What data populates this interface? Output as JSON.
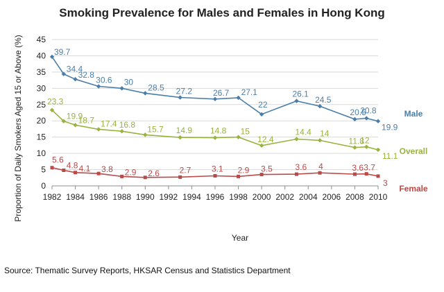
{
  "chart_data": {
    "type": "line",
    "title": "Smoking Prevalence for Males and Females in Hong Kong",
    "xlabel": "Year",
    "ylabel": "Proportion of Daily Smokers Aged 15 or Above  (%)",
    "xlim": [
      1982,
      2010
    ],
    "ylim": [
      0,
      45
    ],
    "x_ticks": [
      1982,
      1984,
      1986,
      1988,
      1990,
      1992,
      1994,
      1996,
      1998,
      2000,
      2002,
      2004,
      2006,
      2008,
      2010
    ],
    "y_ticks": [
      0,
      5,
      10,
      15,
      20,
      25,
      30,
      35,
      40,
      45
    ],
    "grid": true,
    "legend": "right, labels at line ends",
    "source": "Source: Thematic Survey Reports, HKSAR Census and Statistics Department",
    "series": [
      {
        "name": "Male",
        "color": "#4a7ea8",
        "points": [
          {
            "x": 1982,
            "y": 39.7
          },
          {
            "x": 1983,
            "y": 34.4
          },
          {
            "x": 1984,
            "y": 32.8
          },
          {
            "x": 1986,
            "y": 30.6
          },
          {
            "x": 1988,
            "y": 30
          },
          {
            "x": 1990,
            "y": 28.5
          },
          {
            "x": 1993,
            "y": 27.2
          },
          {
            "x": 1996,
            "y": 26.7
          },
          {
            "x": 1998,
            "y": 27.1
          },
          {
            "x": 2000,
            "y": 22
          },
          {
            "x": 2003,
            "y": 26.1
          },
          {
            "x": 2005,
            "y": 24.5
          },
          {
            "x": 2008,
            "y": 20.5
          },
          {
            "x": 2009,
            "y": 20.8
          },
          {
            "x": 2010,
            "y": 19.9
          }
        ]
      },
      {
        "name": "Overall",
        "color": "#98b33e",
        "points": [
          {
            "x": 1982,
            "y": 23.3
          },
          {
            "x": 1983,
            "y": 19.9
          },
          {
            "x": 1984,
            "y": 18.7
          },
          {
            "x": 1986,
            "y": 17.4
          },
          {
            "x": 1988,
            "y": 16.8
          },
          {
            "x": 1990,
            "y": 15.7
          },
          {
            "x": 1993,
            "y": 14.9
          },
          {
            "x": 1996,
            "y": 14.8
          },
          {
            "x": 1998,
            "y": 15
          },
          {
            "x": 2000,
            "y": 12.4
          },
          {
            "x": 2003,
            "y": 14.4
          },
          {
            "x": 2005,
            "y": 14
          },
          {
            "x": 2008,
            "y": 11.8
          },
          {
            "x": 2009,
            "y": 12
          },
          {
            "x": 2010,
            "y": 11.1
          }
        ]
      },
      {
        "name": "Female",
        "color": "#b94a48",
        "points": [
          {
            "x": 1982,
            "y": 5.6
          },
          {
            "x": 1983,
            "y": 4.8
          },
          {
            "x": 1984,
            "y": 4.1
          },
          {
            "x": 1986,
            "y": 3.8
          },
          {
            "x": 1988,
            "y": 2.9
          },
          {
            "x": 1990,
            "y": 2.6
          },
          {
            "x": 1993,
            "y": 2.7
          },
          {
            "x": 1996,
            "y": 3.1
          },
          {
            "x": 1998,
            "y": 2.9
          },
          {
            "x": 2000,
            "y": 3.5
          },
          {
            "x": 2003,
            "y": 3.6
          },
          {
            "x": 2005,
            "y": 4
          },
          {
            "x": 2008,
            "y": 3.6
          },
          {
            "x": 2009,
            "y": 3.7
          },
          {
            "x": 2010,
            "y": 3
          }
        ]
      }
    ]
  }
}
